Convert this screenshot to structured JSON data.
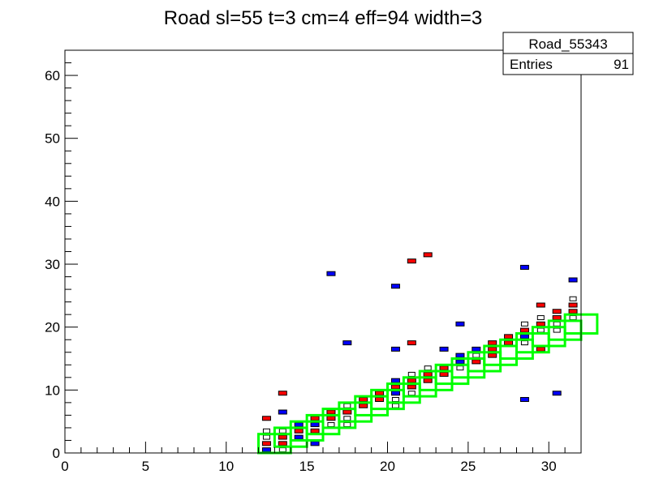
{
  "chart_data": {
    "type": "heatmap",
    "title": "Road sl=55 t=3 cm=4 eff=94 width=3",
    "xlim": [
      0,
      32
    ],
    "ylim": [
      0,
      64
    ],
    "x_ticks": [
      "0",
      "5",
      "10",
      "15",
      "20",
      "25",
      "30"
    ],
    "y_ticks": [
      "0",
      "10",
      "20",
      "30",
      "40",
      "50",
      "60"
    ],
    "grid": false,
    "legend": {
      "name": "Road_55343",
      "entries_label": "Entries",
      "entries_value": "91",
      "placement": "top-right"
    },
    "road_boxes": [
      [
        12,
        0
      ],
      [
        13,
        1
      ],
      [
        14,
        2
      ],
      [
        15,
        3
      ],
      [
        16,
        4
      ],
      [
        17,
        5
      ],
      [
        18,
        6
      ],
      [
        19,
        7
      ],
      [
        20,
        8
      ],
      [
        21,
        9
      ],
      [
        22,
        10
      ],
      [
        23,
        11
      ],
      [
        24,
        12
      ],
      [
        25,
        13
      ],
      [
        26,
        14
      ],
      [
        27,
        15
      ],
      [
        28,
        16
      ],
      [
        29,
        17
      ],
      [
        30,
        18
      ],
      [
        31,
        19
      ]
    ],
    "hits": [
      {
        "x": 12,
        "y": 0,
        "color": "blue"
      },
      {
        "x": 12,
        "y": 1,
        "color": "red"
      },
      {
        "x": 12,
        "y": 2,
        "color": "white"
      },
      {
        "x": 12,
        "y": 3,
        "color": "white"
      },
      {
        "x": 12,
        "y": 5,
        "color": "red"
      },
      {
        "x": 13,
        "y": 0,
        "color": "white"
      },
      {
        "x": 13,
        "y": 1,
        "color": "red"
      },
      {
        "x": 13,
        "y": 2,
        "color": "red"
      },
      {
        "x": 13,
        "y": 3,
        "color": "white"
      },
      {
        "x": 13,
        "y": 6,
        "color": "blue"
      },
      {
        "x": 13,
        "y": 9,
        "color": "red"
      },
      {
        "x": 14,
        "y": 2,
        "color": "blue"
      },
      {
        "x": 14,
        "y": 3,
        "color": "red"
      },
      {
        "x": 14,
        "y": 4,
        "color": "blue"
      },
      {
        "x": 15,
        "y": 1,
        "color": "blue"
      },
      {
        "x": 15,
        "y": 3,
        "color": "red"
      },
      {
        "x": 15,
        "y": 4,
        "color": "blue"
      },
      {
        "x": 15,
        "y": 5,
        "color": "red"
      },
      {
        "x": 16,
        "y": 4,
        "color": "white"
      },
      {
        "x": 16,
        "y": 5,
        "color": "red"
      },
      {
        "x": 16,
        "y": 6,
        "color": "red"
      },
      {
        "x": 16,
        "y": 28,
        "color": "blue"
      },
      {
        "x": 17,
        "y": 4,
        "color": "white"
      },
      {
        "x": 17,
        "y": 5,
        "color": "white"
      },
      {
        "x": 17,
        "y": 6,
        "color": "red"
      },
      {
        "x": 17,
        "y": 7,
        "color": "white"
      },
      {
        "x": 17,
        "y": 17,
        "color": "blue"
      },
      {
        "x": 18,
        "y": 7,
        "color": "red"
      },
      {
        "x": 18,
        "y": 8,
        "color": "red"
      },
      {
        "x": 19,
        "y": 8,
        "color": "red"
      },
      {
        "x": 19,
        "y": 9,
        "color": "red"
      },
      {
        "x": 20,
        "y": 7,
        "color": "white"
      },
      {
        "x": 20,
        "y": 8,
        "color": "white"
      },
      {
        "x": 20,
        "y": 9,
        "color": "blue"
      },
      {
        "x": 20,
        "y": 10,
        "color": "red"
      },
      {
        "x": 20,
        "y": 11,
        "color": "blue"
      },
      {
        "x": 20,
        "y": 16,
        "color": "blue"
      },
      {
        "x": 20,
        "y": 26,
        "color": "blue"
      },
      {
        "x": 21,
        "y": 9,
        "color": "white"
      },
      {
        "x": 21,
        "y": 10,
        "color": "red"
      },
      {
        "x": 21,
        "y": 11,
        "color": "red"
      },
      {
        "x": 21,
        "y": 12,
        "color": "white"
      },
      {
        "x": 21,
        "y": 17,
        "color": "red"
      },
      {
        "x": 21,
        "y": 30,
        "color": "red"
      },
      {
        "x": 22,
        "y": 11,
        "color": "red"
      },
      {
        "x": 22,
        "y": 12,
        "color": "red"
      },
      {
        "x": 22,
        "y": 13,
        "color": "white"
      },
      {
        "x": 22,
        "y": 31,
        "color": "red"
      },
      {
        "x": 23,
        "y": 12,
        "color": "red"
      },
      {
        "x": 23,
        "y": 13,
        "color": "red"
      },
      {
        "x": 23,
        "y": 16,
        "color": "blue"
      },
      {
        "x": 24,
        "y": 13,
        "color": "white"
      },
      {
        "x": 24,
        "y": 14,
        "color": "blue"
      },
      {
        "x": 24,
        "y": 15,
        "color": "blue"
      },
      {
        "x": 24,
        "y": 20,
        "color": "blue"
      },
      {
        "x": 25,
        "y": 14,
        "color": "red"
      },
      {
        "x": 25,
        "y": 15,
        "color": "white"
      },
      {
        "x": 25,
        "y": 16,
        "color": "blue"
      },
      {
        "x": 26,
        "y": 15,
        "color": "red"
      },
      {
        "x": 26,
        "y": 16,
        "color": "red"
      },
      {
        "x": 26,
        "y": 17,
        "color": "red"
      },
      {
        "x": 27,
        "y": 17,
        "color": "red"
      },
      {
        "x": 27,
        "y": 18,
        "color": "red"
      },
      {
        "x": 28,
        "y": 17,
        "color": "white"
      },
      {
        "x": 28,
        "y": 18,
        "color": "blue"
      },
      {
        "x": 28,
        "y": 19,
        "color": "red"
      },
      {
        "x": 28,
        "y": 20,
        "color": "white"
      },
      {
        "x": 28,
        "y": 8,
        "color": "blue"
      },
      {
        "x": 28,
        "y": 29,
        "color": "blue"
      },
      {
        "x": 29,
        "y": 16,
        "color": "red"
      },
      {
        "x": 29,
        "y": 19,
        "color": "white"
      },
      {
        "x": 29,
        "y": 20,
        "color": "red"
      },
      {
        "x": 29,
        "y": 21,
        "color": "white"
      },
      {
        "x": 29,
        "y": 23,
        "color": "red"
      },
      {
        "x": 30,
        "y": 19,
        "color": "white"
      },
      {
        "x": 30,
        "y": 20,
        "color": "white"
      },
      {
        "x": 30,
        "y": 21,
        "color": "red"
      },
      {
        "x": 30,
        "y": 22,
        "color": "red"
      },
      {
        "x": 30,
        "y": 9,
        "color": "blue"
      },
      {
        "x": 31,
        "y": 21,
        "color": "white"
      },
      {
        "x": 31,
        "y": 22,
        "color": "red"
      },
      {
        "x": 31,
        "y": 23,
        "color": "red"
      },
      {
        "x": 31,
        "y": 24,
        "color": "white"
      },
      {
        "x": 31,
        "y": 27,
        "color": "blue"
      }
    ],
    "colors": {
      "red": "#ff0000",
      "blue": "#0000ff",
      "white": "#ffffff",
      "road_box": "#00ff00",
      "axis": "#000000"
    }
  }
}
